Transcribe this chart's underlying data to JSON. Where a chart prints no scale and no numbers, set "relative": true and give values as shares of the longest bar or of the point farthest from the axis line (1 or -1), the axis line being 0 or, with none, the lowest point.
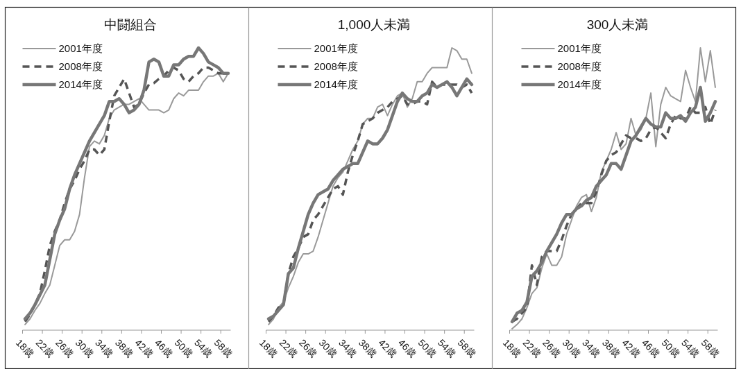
{
  "chart_data": [
    {
      "type": "line",
      "title": "中闘組合",
      "relative": true,
      "legend": "top left",
      "categories": [
        "18歳",
        null,
        null,
        null,
        "22歳",
        null,
        null,
        null,
        "26歳",
        null,
        null,
        null,
        "30歳",
        null,
        null,
        null,
        "34歳",
        null,
        null,
        null,
        "38歳",
        null,
        null,
        null,
        "42歳",
        null,
        null,
        null,
        "46歳",
        null,
        null,
        null,
        "50歳",
        null,
        null,
        null,
        "54歳",
        null,
        null,
        null,
        "58歳",
        null
      ],
      "series": [
        {
          "name": "2001年度",
          "color": "#999999",
          "line_style": "solid",
          "values": [
            0.02,
            0.04,
            0.07,
            0.095,
            0.13,
            0.16,
            0.23,
            0.3,
            0.32,
            0.32,
            0.35,
            0.41,
            0.54,
            0.65,
            0.67,
            0.66,
            0.69,
            0.75,
            0.78,
            0.79,
            0.8,
            0.8,
            0.81,
            0.82,
            0.8,
            0.78,
            0.78,
            0.78,
            0.77,
            0.78,
            0.82,
            0.84,
            0.83,
            0.85,
            0.85,
            0.85,
            0.88,
            0.9,
            0.9,
            0.91,
            0.88,
            0.91
          ]
        },
        {
          "name": "2008年度",
          "color": "#555555",
          "line_style": "dashed",
          "values": [
            0.03,
            0.055,
            0.09,
            0.13,
            0.21,
            0.3,
            0.35,
            0.39,
            0.45,
            0.5,
            0.53,
            0.57,
            0.6,
            0.64,
            0.64,
            0.62,
            0.64,
            0.74,
            0.83,
            0.86,
            0.89,
            0.84,
            0.79,
            0.8,
            0.84,
            0.87,
            0.875,
            0.89,
            0.9,
            0.92,
            0.93,
            0.92,
            0.89,
            0.88,
            0.9,
            0.91,
            0.93,
            0.93,
            0.92,
            0.91,
            0.91,
            0.91
          ]
        },
        {
          "name": "2014年度",
          "color": "#777777",
          "line_style": "solid",
          "values": [
            0.04,
            0.06,
            0.09,
            0.125,
            0.16,
            0.25,
            0.34,
            0.39,
            0.43,
            0.5,
            0.55,
            0.59,
            0.63,
            0.67,
            0.7,
            0.73,
            0.76,
            0.81,
            0.81,
            0.82,
            0.8,
            0.77,
            0.78,
            0.8,
            0.85,
            0.95,
            0.96,
            0.95,
            0.9,
            0.9,
            0.94,
            0.94,
            0.96,
            0.97,
            0.97,
            1.0,
            0.98,
            0.95,
            0.94,
            0.93,
            0.91,
            0.91
          ]
        }
      ]
    },
    {
      "type": "line",
      "title": "1,000人未満",
      "relative": true,
      "legend": "top left",
      "categories": [
        "18歳",
        null,
        null,
        null,
        "22歳",
        null,
        null,
        null,
        "26歳",
        null,
        null,
        null,
        "30歳",
        null,
        null,
        null,
        "34歳",
        null,
        null,
        null,
        "38歳",
        null,
        null,
        null,
        "42歳",
        null,
        null,
        null,
        "46歳",
        null,
        null,
        null,
        "50歳",
        null,
        null,
        null,
        "54歳",
        null,
        null,
        null,
        "58歳",
        null
      ],
      "series": [
        {
          "name": "2001年度",
          "color": "#999999",
          "line_style": "solid",
          "values": [
            0.02,
            0.04,
            0.08,
            0.1,
            0.15,
            0.19,
            0.24,
            0.27,
            0.27,
            0.28,
            0.33,
            0.39,
            0.45,
            0.51,
            0.54,
            0.56,
            0.6,
            0.64,
            0.67,
            0.73,
            0.75,
            0.75,
            0.79,
            0.8,
            0.76,
            0.8,
            0.83,
            0.84,
            0.79,
            0.82,
            0.88,
            0.88,
            0.91,
            0.93,
            0.93,
            0.93,
            0.93,
            1.0,
            0.99,
            0.96,
            0.96,
            0.91
          ]
        },
        {
          "name": "2008年度",
          "color": "#555555",
          "line_style": "dashed",
          "values": [
            0.03,
            0.05,
            0.08,
            0.09,
            0.2,
            0.26,
            0.29,
            0.33,
            0.34,
            0.39,
            0.41,
            0.44,
            0.47,
            0.5,
            0.51,
            0.48,
            0.56,
            0.62,
            0.67,
            0.73,
            0.74,
            0.75,
            0.77,
            0.78,
            0.79,
            0.81,
            0.82,
            0.83,
            0.8,
            0.8,
            0.81,
            0.81,
            0.8,
            0.88,
            0.86,
            0.87,
            0.87,
            0.87,
            0.87,
            0.86,
            0.87,
            0.84
          ]
        },
        {
          "name": "2014年度",
          "color": "#777777",
          "line_style": "solid",
          "values": [
            0.04,
            0.05,
            0.07,
            0.09,
            0.2,
            0.22,
            0.29,
            0.35,
            0.41,
            0.45,
            0.48,
            0.49,
            0.5,
            0.53,
            0.55,
            0.57,
            0.58,
            0.59,
            0.59,
            0.63,
            0.67,
            0.66,
            0.66,
            0.68,
            0.71,
            0.76,
            0.81,
            0.84,
            0.82,
            0.81,
            0.81,
            0.83,
            0.84,
            0.87,
            0.86,
            0.87,
            0.88,
            0.86,
            0.83,
            0.86,
            0.89,
            0.87
          ]
        }
      ]
    },
    {
      "type": "line",
      "title": "300人未満",
      "relative": true,
      "legend": "top left",
      "categories": [
        "18歳",
        null,
        null,
        null,
        "22歳",
        null,
        null,
        null,
        "26歳",
        null,
        null,
        null,
        "30歳",
        null,
        null,
        null,
        "34歳",
        null,
        null,
        null,
        "38歳",
        null,
        null,
        null,
        "42歳",
        null,
        null,
        null,
        "46歳",
        null,
        null,
        null,
        "50歳",
        null,
        null,
        null,
        "54歳",
        null,
        null,
        null,
        "58歳",
        null
      ],
      "series": [
        {
          "name": "2001年度",
          "color": "#999999",
          "line_style": "solid",
          "values": [
            0.005,
            0.02,
            0.04,
            0.08,
            0.13,
            0.15,
            0.22,
            0.27,
            0.23,
            0.23,
            0.26,
            0.34,
            0.39,
            0.44,
            0.47,
            0.48,
            0.42,
            0.47,
            0.56,
            0.6,
            0.64,
            0.7,
            0.64,
            0.66,
            0.75,
            0.69,
            0.71,
            0.75,
            0.84,
            0.65,
            0.8,
            0.86,
            0.83,
            0.82,
            0.81,
            0.92,
            0.86,
            0.81,
            1.0,
            0.88,
            0.99,
            0.86
          ]
        },
        {
          "name": "2008年度",
          "color": "#555555",
          "line_style": "dashed",
          "values": [
            0.03,
            0.04,
            0.06,
            0.08,
            0.23,
            0.16,
            0.26,
            0.28,
            0.28,
            0.28,
            0.32,
            0.37,
            0.41,
            0.43,
            0.45,
            0.45,
            0.45,
            0.49,
            0.55,
            0.6,
            0.62,
            0.63,
            0.66,
            0.69,
            0.68,
            0.68,
            0.67,
            0.68,
            0.71,
            0.72,
            0.7,
            0.68,
            0.73,
            0.76,
            0.75,
            0.75,
            0.79,
            0.77,
            0.77,
            0.79,
            0.73,
            0.78
          ]
        },
        {
          "name": "2014年度",
          "color": "#777777",
          "line_style": "solid",
          "values": [
            0.03,
            0.06,
            0.07,
            0.1,
            0.19,
            0.21,
            0.24,
            0.28,
            0.31,
            0.34,
            0.38,
            0.41,
            0.41,
            0.43,
            0.44,
            0.46,
            0.47,
            0.51,
            0.53,
            0.55,
            0.59,
            0.59,
            0.57,
            0.62,
            0.67,
            0.69,
            0.72,
            0.75,
            0.73,
            0.72,
            0.72,
            0.77,
            0.75,
            0.75,
            0.76,
            0.74,
            0.77,
            0.79,
            0.86,
            0.74,
            0.77,
            0.81
          ]
        }
      ]
    }
  ]
}
